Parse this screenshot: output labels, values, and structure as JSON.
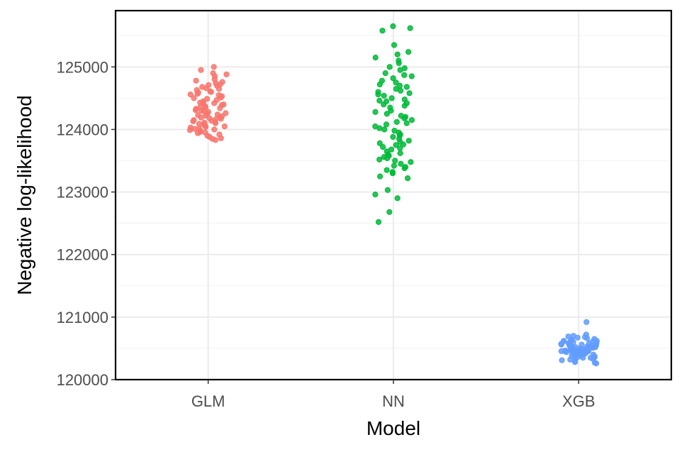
{
  "chart_data": {
    "type": "scatter",
    "title": "",
    "xlabel": "Model",
    "ylabel": "Negative log-likelihood",
    "categories": [
      "GLM",
      "NN",
      "XGB"
    ],
    "ylim": [
      120000,
      125900
    ],
    "yticks": [
      120000,
      121000,
      122000,
      123000,
      124000,
      125000
    ],
    "ytick_labels": [
      "120000",
      "121000",
      "122000",
      "123000",
      "124000",
      "125000"
    ],
    "grid": true,
    "legend": "none",
    "point_style": "jittered strip",
    "series": [
      {
        "category": "GLM",
        "color": "#F8766D",
        "values": [
          125000,
          124950,
          124900,
          124880,
          124850,
          124800,
          124780,
          124760,
          124740,
          124720,
          124700,
          124680,
          124650,
          124630,
          124600,
          124590,
          124570,
          124550,
          124530,
          124510,
          124500,
          124490,
          124470,
          124450,
          124430,
          124420,
          124400,
          124390,
          124370,
          124350,
          124340,
          124330,
          124310,
          124300,
          124290,
          124280,
          124260,
          124250,
          124240,
          124230,
          124220,
          124210,
          124200,
          124190,
          124180,
          124170,
          124160,
          124150,
          124140,
          124130,
          124120,
          124110,
          124100,
          124090,
          124080,
          124070,
          124060,
          124050,
          124040,
          124030,
          124020,
          124010,
          124000,
          123990,
          123980,
          123960,
          123950,
          123940,
          123920,
          123900,
          123880,
          123860,
          123850,
          123830,
          124560,
          124610,
          124660,
          124710,
          124420,
          124360
        ]
      },
      {
        "category": "NN",
        "color": "#00BA38",
        "values": [
          125650,
          125620,
          125580,
          125350,
          125240,
          125200,
          125150,
          125100,
          125060,
          125000,
          124980,
          124950,
          124900,
          124870,
          124850,
          124820,
          124780,
          124750,
          124700,
          124680,
          124650,
          124620,
          124600,
          124580,
          124560,
          124540,
          124500,
          124480,
          124450,
          124420,
          124400,
          124380,
          124350,
          124300,
          124280,
          124250,
          124220,
          124200,
          124180,
          124150,
          124120,
          124100,
          124080,
          124050,
          124000,
          123980,
          123950,
          123920,
          123900,
          123880,
          123850,
          123820,
          123800,
          123780,
          123750,
          123720,
          123700,
          123680,
          123650,
          123620,
          123600,
          123580,
          123560,
          123540,
          123520,
          123500,
          123480,
          123450,
          123420,
          123400,
          123380,
          123350,
          123320,
          123300,
          123250,
          123220,
          123030,
          122960,
          122900,
          122680,
          122520,
          124720,
          124460,
          124020,
          123760
        ]
      },
      {
        "category": "XGB",
        "color": "#619CFF",
        "values": [
          120920,
          120720,
          120700,
          120690,
          120670,
          120650,
          120640,
          120620,
          120610,
          120600,
          120590,
          120580,
          120570,
          120560,
          120550,
          120540,
          120530,
          120520,
          120510,
          120500,
          120495,
          120490,
          120485,
          120480,
          120475,
          120470,
          120465,
          120460,
          120455,
          120450,
          120445,
          120440,
          120435,
          120430,
          120425,
          120420,
          120415,
          120410,
          120400,
          120390,
          120380,
          120370,
          120360,
          120350,
          120340,
          120330,
          120320,
          120310,
          120300,
          120280,
          120270,
          120260,
          120560,
          120520,
          120480,
          120440,
          120400,
          120500,
          120540,
          120460,
          120620,
          120580,
          120360,
          120680,
          120510,
          120470,
          120530,
          120490,
          120430,
          120390,
          120610,
          120550,
          120450,
          120570,
          120410,
          120630,
          120350,
          120660,
          120520,
          120480
        ]
      }
    ]
  }
}
